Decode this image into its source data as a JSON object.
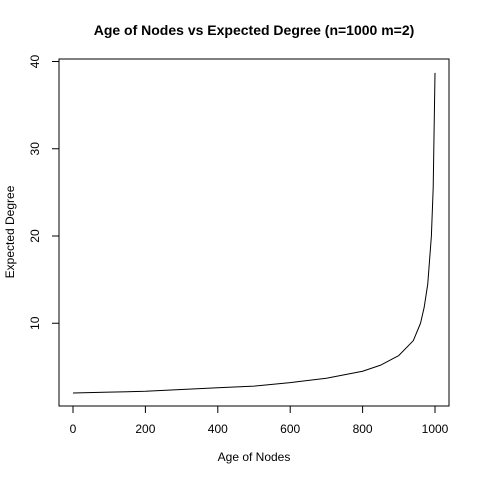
{
  "chart_data": {
    "type": "line",
    "title": "Age of Nodes vs Expected Degree (n=1000 m=2)",
    "xlabel": "Age of Nodes",
    "ylabel": "Expected Degree",
    "xlim": [
      0,
      1000
    ],
    "ylim": [
      0,
      40
    ],
    "xticks": [
      0,
      200,
      400,
      600,
      800,
      1000
    ],
    "yticks": [
      10,
      20,
      30,
      40
    ],
    "grid": false,
    "legend": "none",
    "line_color": "#000000",
    "x": [
      0,
      100,
      200,
      300,
      400,
      500,
      600,
      700,
      800,
      850,
      900,
      940,
      960,
      970,
      980,
      990,
      995,
      1000
    ],
    "y": [
      2.0,
      2.1,
      2.2,
      2.4,
      2.6,
      2.8,
      3.2,
      3.7,
      4.5,
      5.2,
      6.3,
      8.0,
      10.0,
      11.8,
      14.5,
      20.0,
      25.5,
      38.7
    ]
  }
}
